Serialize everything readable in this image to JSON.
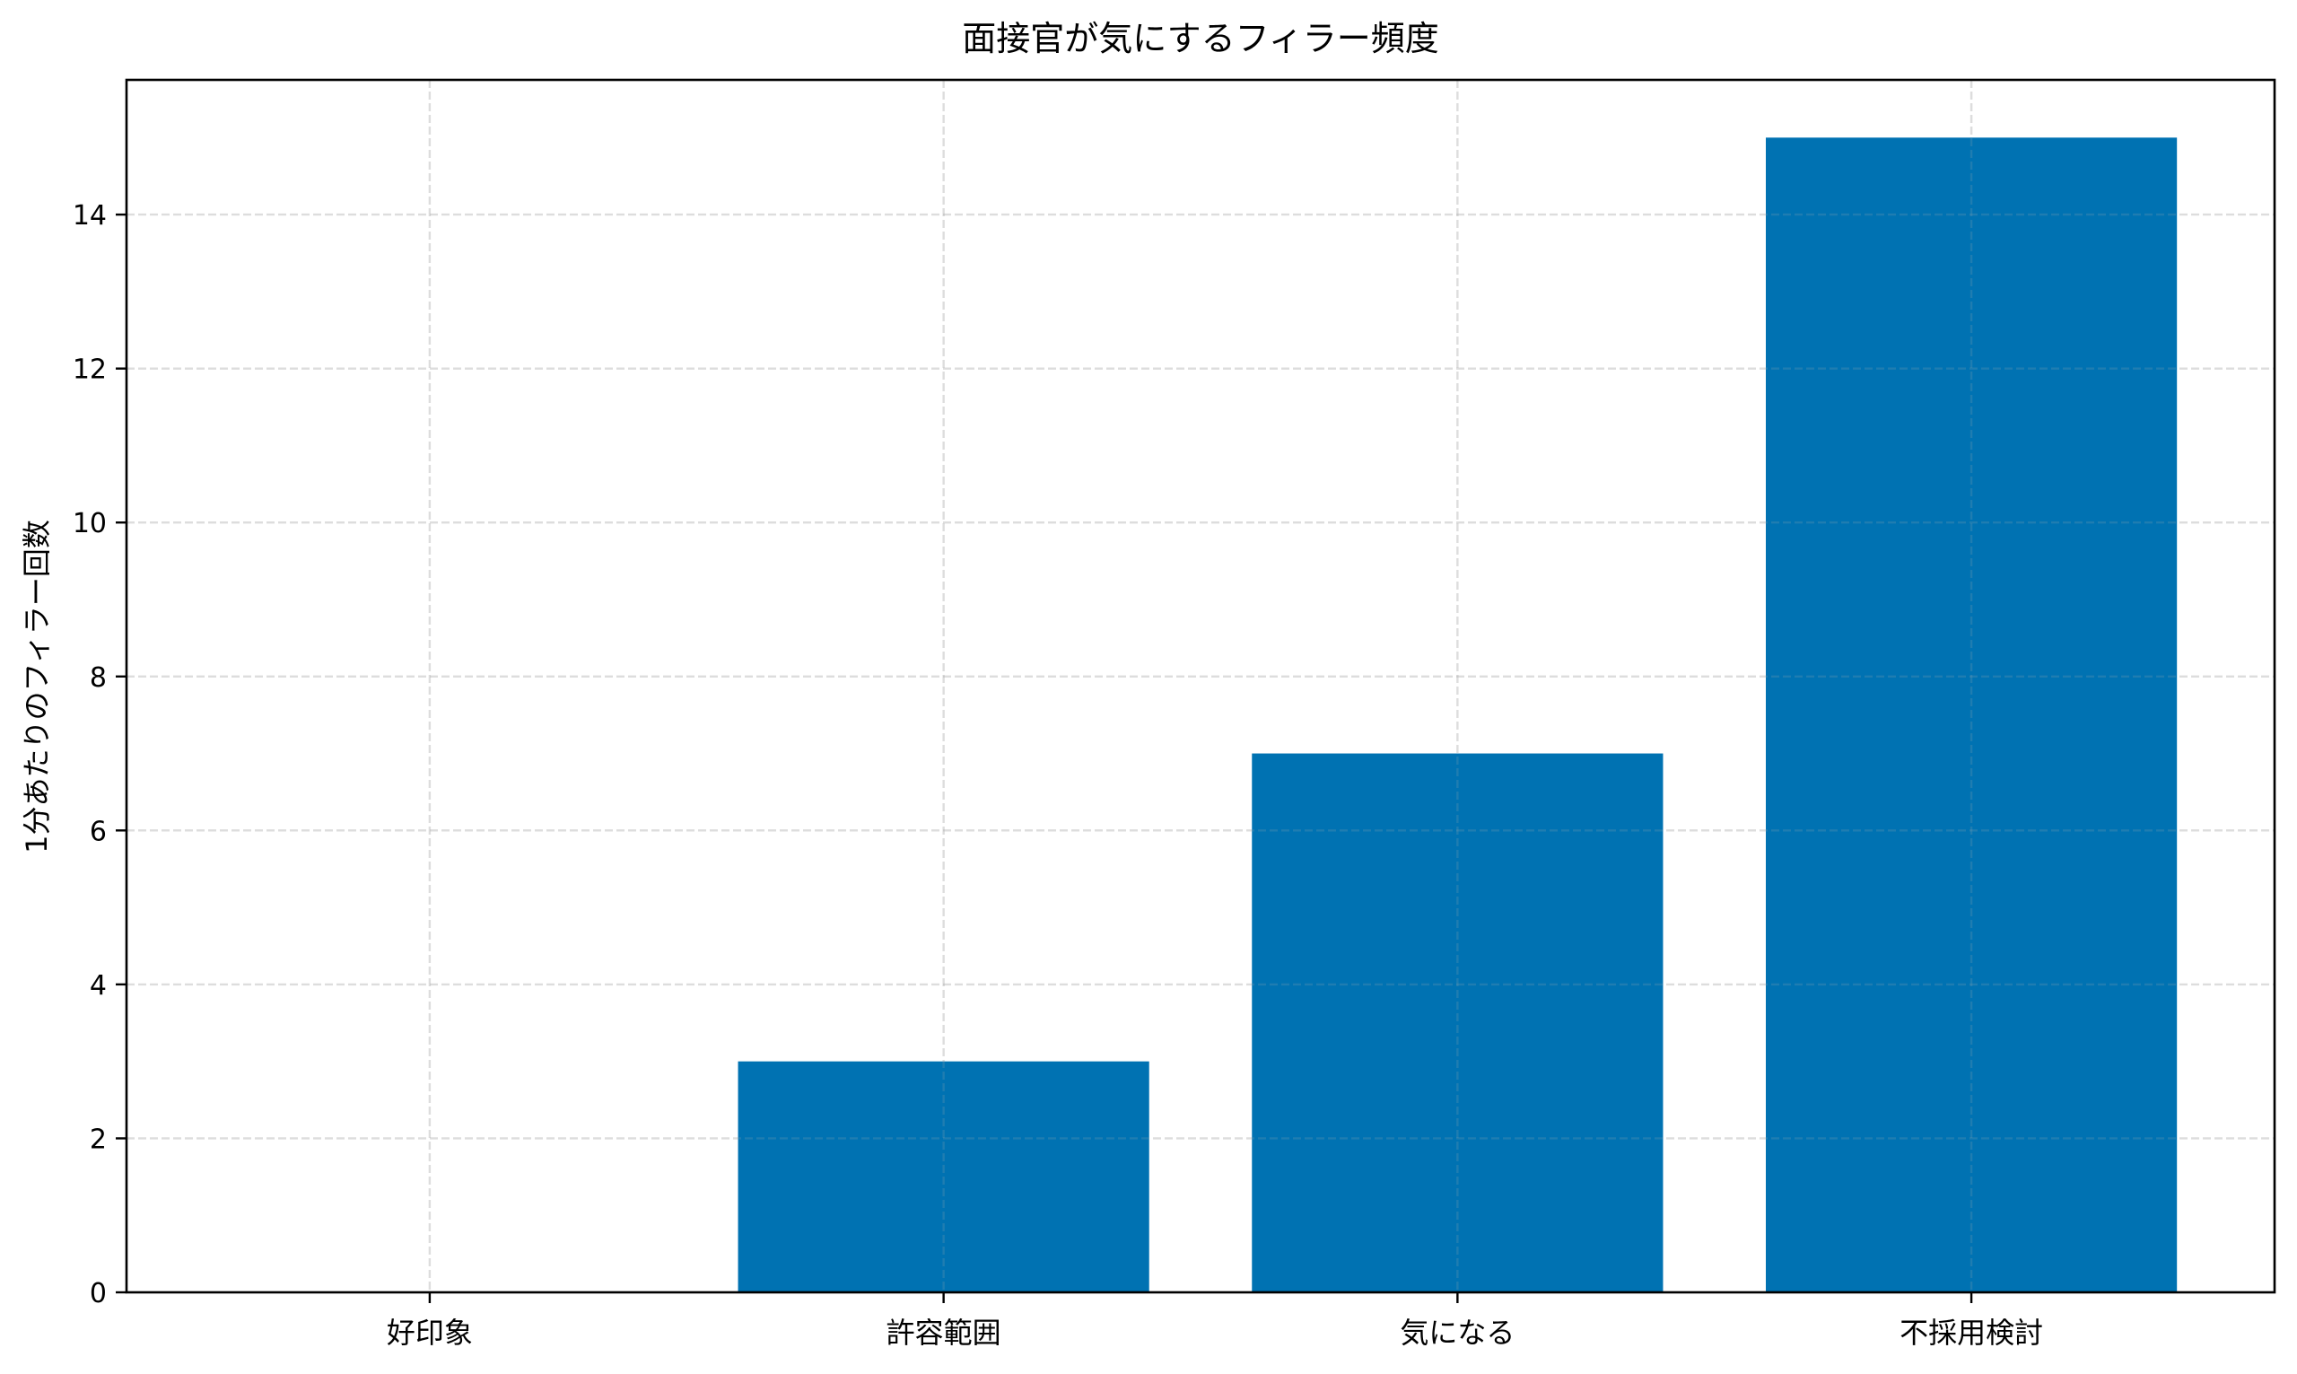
{
  "chart_data": {
    "type": "bar",
    "title": "面接官が気にするフィラー頻度",
    "xlabel": "",
    "ylabel": "1分あたりのフィラー回数",
    "categories": [
      "好印象",
      "許容範囲",
      "気になる",
      "不採用検討"
    ],
    "values": [
      0,
      3,
      7,
      15
    ],
    "ylim": [
      0,
      15.75
    ],
    "yticks": [
      0,
      2,
      4,
      6,
      8,
      10,
      12,
      14
    ],
    "grid": true,
    "grid_style": "dashed",
    "legend": null,
    "bar_color": "#0072B2",
    "bar_width": 0.8
  }
}
